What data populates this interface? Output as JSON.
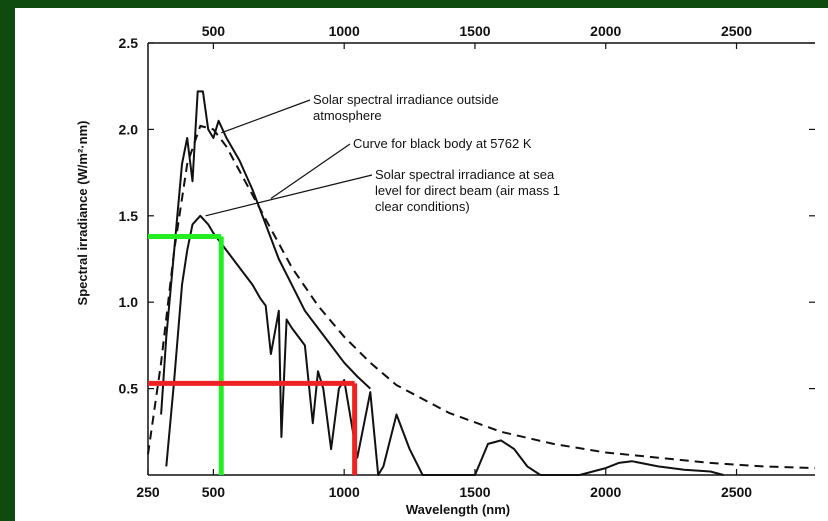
{
  "chart_data": {
    "type": "line",
    "xlabel": "Wavelength (nm)",
    "ylabel": "Spectral irradiance (W/m²·nm)",
    "xlim": [
      250,
      2800
    ],
    "ylim": [
      0,
      2.5
    ],
    "x_ticks_bottom": [
      "250",
      "500",
      "1000",
      "1500",
      "2000",
      "2500"
    ],
    "x_ticks_top": [
      "500",
      "1000",
      "1500",
      "2000",
      "2500"
    ],
    "y_ticks": [
      "0.5",
      "1.0",
      "1.5",
      "2.0",
      "2.5"
    ],
    "annotations": [
      "Solar spectral irradiance outside",
      "atmosphere",
      "Curve for black body at 5762 K",
      "Solar spectral irradiance at sea",
      "level for direct beam (air mass 1",
      "clear conditions)"
    ],
    "series": [
      {
        "style": "dashed",
        "x": [
          250,
          300,
          350,
          400,
          450,
          500,
          550,
          600,
          700,
          800,
          900,
          1000,
          1100,
          1200,
          1400,
          1600,
          1800,
          2000,
          2200,
          2400,
          2600,
          2800
        ],
        "y": [
          0.12,
          0.65,
          1.3,
          1.8,
          2.02,
          2.0,
          1.9,
          1.76,
          1.48,
          1.2,
          0.98,
          0.8,
          0.65,
          0.52,
          0.36,
          0.25,
          0.18,
          0.13,
          0.1,
          0.07,
          0.05,
          0.04
        ]
      },
      {
        "style": "solid",
        "x": [
          300,
          320,
          350,
          380,
          400,
          420,
          440,
          460,
          480,
          500,
          520,
          550,
          600,
          650,
          700,
          750,
          800,
          850,
          900,
          950,
          1000,
          1050,
          1100
        ],
        "y": [
          0.35,
          0.8,
          1.3,
          1.8,
          1.95,
          1.7,
          2.22,
          2.22,
          2.0,
          1.95,
          2.05,
          1.95,
          1.82,
          1.65,
          1.45,
          1.25,
          1.1,
          0.95,
          0.85,
          0.75,
          0.65,
          0.57,
          0.5
        ]
      },
      {
        "style": "solid",
        "x": [
          320,
          350,
          380,
          400,
          420,
          450,
          480,
          500,
          550,
          600,
          650,
          680,
          700,
          720,
          750,
          760,
          780,
          800,
          850,
          880,
          900,
          920,
          950,
          980,
          1000,
          1050,
          1100,
          1130,
          1150,
          1200,
          1250,
          1300,
          1350,
          1400,
          1450,
          1500,
          1550,
          1600,
          1650,
          1700,
          1750,
          1800,
          1900,
          2000,
          2050,
          2100,
          2200,
          2300,
          2400,
          2450
        ],
        "y": [
          0.05,
          0.55,
          1.1,
          1.3,
          1.45,
          1.5,
          1.45,
          1.4,
          1.3,
          1.2,
          1.1,
          1.02,
          0.98,
          0.7,
          0.95,
          0.22,
          0.9,
          0.85,
          0.75,
          0.3,
          0.6,
          0.5,
          0.15,
          0.5,
          0.55,
          0.1,
          0.48,
          0.0,
          0.05,
          0.35,
          0.15,
          0.0,
          0.0,
          0.0,
          0.0,
          0.0,
          0.18,
          0.2,
          0.15,
          0.05,
          0.0,
          0.0,
          0.0,
          0.04,
          0.07,
          0.08,
          0.05,
          0.03,
          0.02,
          0.0
        ]
      }
    ],
    "markers": [
      {
        "color": "#22ee22",
        "x": 530,
        "y": 1.38
      },
      {
        "color": "#ee2222",
        "x": 1040,
        "y": 0.53
      }
    ]
  }
}
